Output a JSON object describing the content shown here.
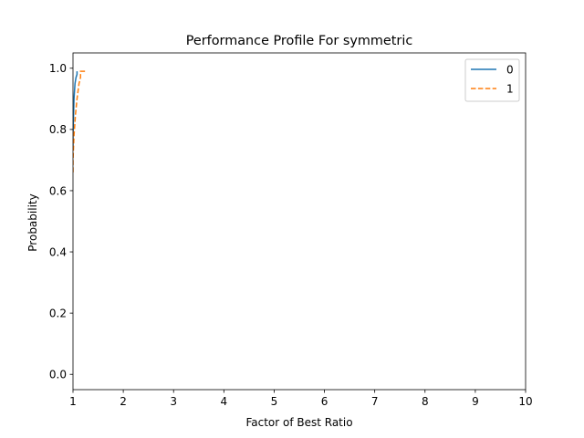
{
  "chart_data": {
    "type": "line",
    "title": "Performance Profile For symmetric",
    "xlabel": "Factor of Best Ratio",
    "ylabel": "Probability",
    "xlim": [
      1,
      10
    ],
    "ylim": [
      -0.05,
      1.05
    ],
    "x_ticks": [
      1,
      2,
      3,
      4,
      5,
      6,
      7,
      8,
      9,
      10
    ],
    "x_tick_labels": [
      "1",
      "2",
      "3",
      "4",
      "5",
      "6",
      "7",
      "8",
      "9",
      "10"
    ],
    "y_ticks": [
      0.0,
      0.2,
      0.4,
      0.6,
      0.8,
      1.0
    ],
    "y_tick_labels": [
      "0.0",
      "0.2",
      "0.4",
      "0.6",
      "0.8",
      "1.0"
    ],
    "grid": false,
    "legend_position": "top-right",
    "series": [
      {
        "name": "0",
        "color": "#1f77b4",
        "linestyle": "solid",
        "x": [
          1.0,
          1.0,
          1.01,
          1.02,
          1.04,
          1.06,
          1.08,
          1.08
        ],
        "y": [
          0.74,
          0.78,
          0.84,
          0.9,
          0.95,
          0.97,
          0.98,
          0.99
        ]
      },
      {
        "name": "1",
        "color": "#ff7f0e",
        "linestyle": "dashed",
        "x": [
          1.0,
          1.0,
          1.02,
          1.05,
          1.08,
          1.12,
          1.15,
          1.15,
          1.25
        ],
        "y": [
          0.66,
          0.7,
          0.78,
          0.85,
          0.9,
          0.95,
          0.97,
          0.99,
          0.99
        ]
      }
    ]
  }
}
